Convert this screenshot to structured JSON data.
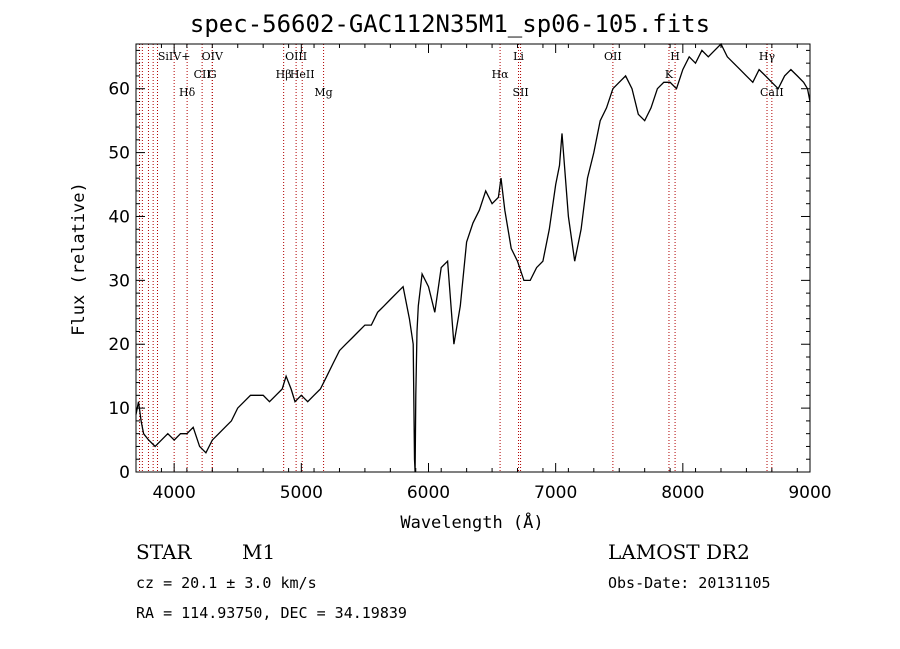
{
  "chart_data": {
    "type": "line",
    "title": "spec-56602-GAC112N35M1_sp06-105.fits",
    "xlabel": "Wavelength (Å)",
    "ylabel": "Flux (relative)",
    "xlim": [
      3700,
      9000
    ],
    "ylim": [
      0,
      67
    ],
    "xticks": [
      4000,
      5000,
      6000,
      7000,
      8000,
      9000
    ],
    "yticks": [
      0,
      10,
      20,
      30,
      40,
      50,
      60
    ],
    "grid": false,
    "series": [
      {
        "x": [
          3700,
          3720,
          3740,
          3760,
          3800,
          3850,
          3900,
          3950,
          4000,
          4050,
          4100,
          4150,
          4200,
          4250,
          4300,
          4350,
          4400,
          4450,
          4500,
          4550,
          4600,
          4650,
          4700,
          4750,
          4800,
          4850,
          4880,
          4920,
          4950,
          5000,
          5050,
          5100,
          5150,
          5200,
          5250,
          5300,
          5350,
          5400,
          5450,
          5500,
          5550,
          5600,
          5650,
          5700,
          5750,
          5800,
          5850,
          5880,
          5890,
          5895,
          5900,
          5910,
          5920,
          5950,
          6000,
          6050,
          6100,
          6150,
          6200,
          6250,
          6300,
          6350,
          6400,
          6450,
          6500,
          6550,
          6570,
          6600,
          6650,
          6700,
          6750,
          6800,
          6850,
          6900,
          6950,
          7000,
          7030,
          7050,
          7100,
          7150,
          7200,
          7250,
          7300,
          7350,
          7400,
          7450,
          7500,
          7550,
          7600,
          7650,
          7700,
          7750,
          7800,
          7850,
          7900,
          7950,
          8000,
          8050,
          8100,
          8150,
          8200,
          8250,
          8300,
          8350,
          8400,
          8450,
          8500,
          8550,
          8600,
          8650,
          8700,
          8750,
          8800,
          8850,
          8900,
          8950,
          8980,
          9000
        ],
        "y": [
          9,
          11,
          8,
          6,
          5,
          4,
          5,
          6,
          5,
          6,
          6,
          7,
          4,
          3,
          5,
          6,
          7,
          8,
          10,
          11,
          12,
          12,
          12,
          11,
          12,
          13,
          15,
          13,
          11,
          12,
          11,
          12,
          13,
          15,
          17,
          19,
          20,
          21,
          22,
          23,
          23,
          25,
          26,
          27,
          28,
          29,
          24,
          20,
          2,
          0,
          12,
          22,
          26,
          31,
          29,
          25,
          32,
          33,
          20,
          26,
          36,
          39,
          41,
          44,
          42,
          43,
          46,
          41,
          35,
          33,
          30,
          30,
          32,
          33,
          38,
          45,
          48,
          53,
          40,
          33,
          38,
          46,
          50,
          55,
          57,
          60,
          61,
          62,
          60,
          56,
          55,
          57,
          60,
          61,
          61,
          60,
          63,
          65,
          64,
          66,
          65,
          66,
          67,
          65,
          64,
          63,
          62,
          61,
          63,
          62,
          61,
          60,
          62,
          63,
          62,
          61,
          60,
          58
        ]
      }
    ],
    "line_labels": [
      {
        "x": 3728,
        "label": "",
        "row": 3
      },
      {
        "x": 3750,
        "label": "",
        "row": 3
      },
      {
        "x": 3798,
        "label": "",
        "row": 3
      },
      {
        "x": 3835,
        "label": "",
        "row": 3
      },
      {
        "x": 3869,
        "label": "",
        "row": 3
      },
      {
        "x": 4000,
        "label": "SiIV+",
        "row": 1
      },
      {
        "x": 4102,
        "label": "Hδ",
        "row": 3
      },
      {
        "x": 4220,
        "label": "CII",
        "row": 2
      },
      {
        "x": 4300,
        "label": "G",
        "row": 2
      },
      {
        "x": 4300,
        "label": "OIV",
        "row": 1
      },
      {
        "x": 4861,
        "label": "Hβ",
        "row": 2
      },
      {
        "x": 4959,
        "label": "OIII",
        "row": 1
      },
      {
        "x": 5007,
        "label": "HeII",
        "row": 2
      },
      {
        "x": 5175,
        "label": "Mg",
        "row": 3
      },
      {
        "x": 6563,
        "label": "Hα",
        "row": 2
      },
      {
        "x": 6708,
        "label": "Li",
        "row": 1
      },
      {
        "x": 6724,
        "label": "SII",
        "row": 3
      },
      {
        "x": 7450,
        "label": "OII",
        "row": 1
      },
      {
        "x": 7891,
        "label": "K",
        "row": 2
      },
      {
        "x": 7939,
        "label": "H",
        "row": 1
      },
      {
        "x": 8662,
        "label": "Hγ",
        "row": 1
      },
      {
        "x": 8700,
        "label": "CaII",
        "row": 3
      }
    ]
  },
  "info": {
    "object_class": "STAR",
    "subclass": "M1",
    "survey": "LAMOST DR2",
    "redshift": "cz = 20.1 ± 3.0 km/s",
    "obs_date": "Obs-Date: 20131105",
    "coords": "RA = 114.93750, DEC =  34.19839"
  }
}
